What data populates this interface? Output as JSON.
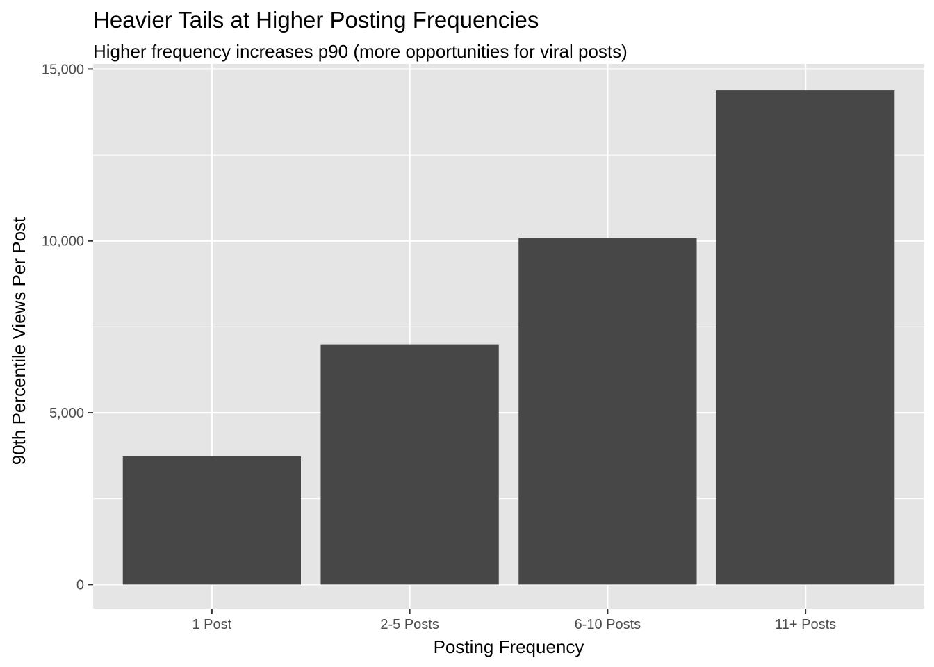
{
  "chart_data": {
    "type": "bar",
    "title": "Heavier Tails at Higher Posting Frequencies",
    "subtitle": "Higher frequency increases p90 (more opportunities for viral posts)",
    "xlabel": "Posting Frequency",
    "ylabel": "90th Percentile Views Per Post",
    "categories": [
      "1 Post",
      "2-5 Posts",
      "6-10 Posts",
      "11+ Posts"
    ],
    "values": [
      3730,
      6990,
      10080,
      14380
    ],
    "ylim": [
      -700,
      15150
    ],
    "yticks": [
      0,
      5000,
      10000,
      15000
    ],
    "ytick_labels": [
      "0",
      "5,000",
      "10,000",
      "15,000"
    ],
    "grid": true,
    "legend": "none",
    "colors": {
      "panel_background": "#e5e5e5",
      "grid_line": "#ffffff",
      "bar_fill": "#474747",
      "tick_text": "#4d4d4d",
      "tick_mark": "#333333"
    }
  }
}
